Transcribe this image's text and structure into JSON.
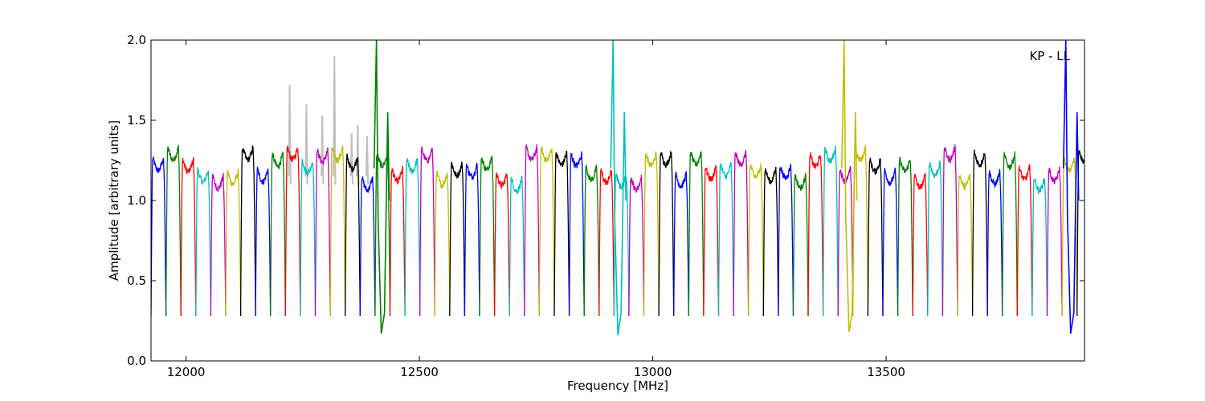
{
  "chart_data": {
    "type": "line",
    "title": "",
    "annotation": "KP - LL",
    "xlabel": "Frequency [MHz]",
    "ylabel": "Amplitude [arbitrary units]",
    "xlim": [
      11925,
      13925
    ],
    "ylim": [
      0.0,
      2.0
    ],
    "x_ticks": [
      12000,
      12500,
      13000,
      13500
    ],
    "y_ticks": [
      0.0,
      0.5,
      1.0,
      1.5,
      2.0
    ],
    "x_tick_labels": [
      "12000",
      "12500",
      "13000",
      "13500"
    ],
    "y_tick_labels": [
      "0.0",
      "0.5",
      "1.0",
      "1.5",
      "2.0"
    ],
    "grid": false,
    "channel_width_mhz": 32,
    "channel_start_mhz": 11925,
    "n_channels": 63,
    "color_cycle": [
      "#0000ff",
      "#008000",
      "#ff0000",
      "#00bfbf",
      "#bf00bf",
      "#bfbf00",
      "#000000"
    ],
    "rfi_reference_color": "#c0c0c0",
    "channel_shape": {
      "passband_level": 1.2,
      "passband_range": [
        1.08,
        1.37
      ],
      "edge_floor": 0.28
    },
    "spikes": [
      {
        "freq": 12408,
        "top": 2.0,
        "bottom": 0.17,
        "color": "#008000"
      },
      {
        "freq": 12915,
        "top": 2.0,
        "bottom": 0.16,
        "color": "#00bfbf"
      },
      {
        "freq": 13410,
        "top": 2.0,
        "bottom": 0.18,
        "color": "#bfbf00"
      },
      {
        "freq": 13885,
        "top": 2.0,
        "bottom": 0.17,
        "color": "#0000ff"
      }
    ],
    "rfi_reference_peaks": [
      {
        "freq": 12222,
        "value": 1.72
      },
      {
        "freq": 12258,
        "value": 1.6
      },
      {
        "freq": 12292,
        "value": 1.53
      },
      {
        "freq": 12318,
        "value": 1.9
      },
      {
        "freq": 12355,
        "value": 1.42
      },
      {
        "freq": 12368,
        "value": 1.47
      },
      {
        "freq": 12388,
        "value": 1.4
      }
    ]
  }
}
